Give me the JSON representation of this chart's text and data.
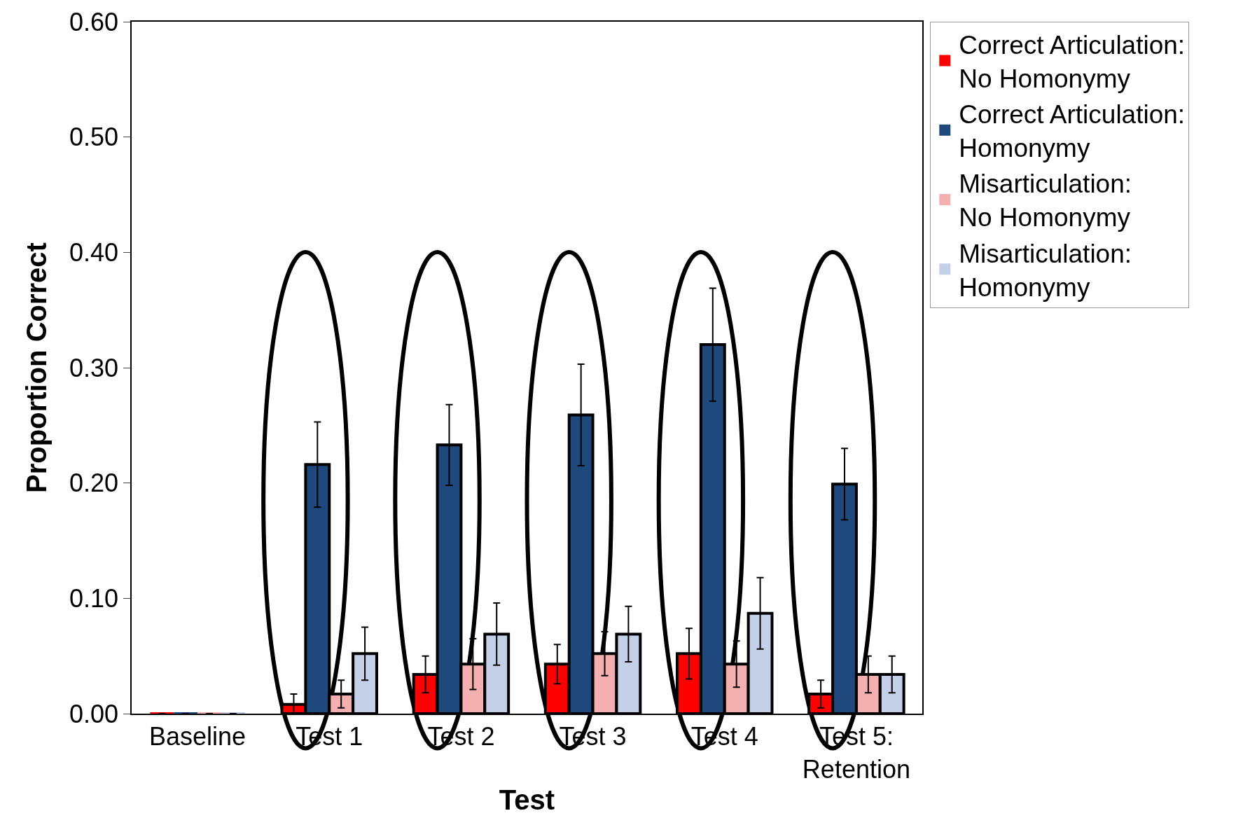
{
  "chart_data": {
    "type": "bar",
    "xlabel": "Test",
    "ylabel": "Proportion Correct",
    "categories": [
      "Baseline",
      "Test 1",
      "Test 2",
      "Test 3",
      "Test 4",
      "Test 5: Retention"
    ],
    "series": [
      {
        "name": "Correct Articulation: No Homonymy",
        "color": "#ff0000",
        "values": [
          0,
          0.008,
          0.034,
          0.043,
          0.052,
          0.017
        ],
        "errors": [
          null,
          0.009,
          0.016,
          0.017,
          0.022,
          0.012
        ]
      },
      {
        "name": "Correct Articulation: Homonymy",
        "color": "#1f497d",
        "values": [
          0,
          0.216,
          0.233,
          0.259,
          0.32,
          0.199
        ],
        "errors": [
          null,
          0.037,
          0.035,
          0.044,
          0.049,
          0.031
        ]
      },
      {
        "name": "Misarticulation: No Homonymy",
        "color": "#f4b0b0",
        "values": [
          0,
          0.017,
          0.043,
          0.052,
          0.043,
          0.034
        ],
        "errors": [
          null,
          0.012,
          0.022,
          0.019,
          0.02,
          0.016
        ]
      },
      {
        "name": "Misarticulation: Homonymy",
        "color": "#c4d0e8",
        "values": [
          0,
          0.052,
          0.069,
          0.069,
          0.087,
          0.034
        ],
        "errors": [
          null,
          0.023,
          0.027,
          0.024,
          0.031,
          0.016
        ]
      }
    ],
    "ylim": [
      0,
      0.6
    ],
    "yticks": [
      {
        "value": 0,
        "label": "0.00"
      },
      {
        "value": 0.1,
        "label": "0.10"
      },
      {
        "value": 0.2,
        "label": "0.20"
      },
      {
        "value": 0.3,
        "label": "0.30"
      },
      {
        "value": 0.4,
        "label": "0.40"
      },
      {
        "value": 0.5,
        "label": "0.50"
      },
      {
        "value": 0.6,
        "label": "0.60"
      }
    ],
    "grid": false,
    "legend": "top right"
  }
}
